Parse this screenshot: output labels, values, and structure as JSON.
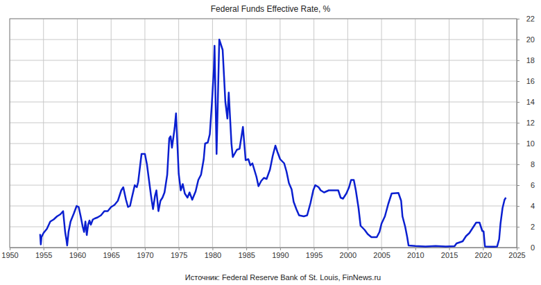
{
  "chart_data": {
    "type": "line",
    "title": "Federal Funds Effective Rate, %",
    "source": "Источник: Federal Reserve Bank of St. Louis, FinNews.ru",
    "color": "#0a1fd0",
    "xlim": [
      1950,
      2025
    ],
    "xticks": [
      1950,
      1955,
      1960,
      1965,
      1970,
      1975,
      1980,
      1985,
      1990,
      1995,
      2000,
      2005,
      2010,
      2015,
      2020,
      2025
    ],
    "ylim": [
      0,
      22
    ],
    "yticks": [
      0,
      2,
      4,
      6,
      8,
      10,
      12,
      14,
      16,
      18,
      20,
      22
    ],
    "grid": true,
    "x": [
      1954.5,
      1954.6,
      1954.7,
      1955,
      1955.5,
      1956,
      1956.5,
      1957,
      1957.5,
      1957.9,
      1958.2,
      1958.4,
      1958.5,
      1958.7,
      1959,
      1959.5,
      1959.9,
      1960.2,
      1960.5,
      1960.8,
      1961,
      1961.2,
      1961.4,
      1961.6,
      1961.8,
      1962,
      1962.3,
      1962.6,
      1963,
      1963.5,
      1964,
      1964.5,
      1965,
      1965.5,
      1966,
      1966.5,
      1966.8,
      1967.2,
      1967.5,
      1967.8,
      1968,
      1968.5,
      1968.8,
      1969,
      1969.5,
      1969.8,
      1970,
      1970.3,
      1970.6,
      1970.9,
      1971.2,
      1971.5,
      1971.7,
      1972,
      1972.3,
      1972.6,
      1972.9,
      1973.3,
      1973.6,
      1973.8,
      1974,
      1974.4,
      1974.6,
      1974.8,
      1975,
      1975.3,
      1975.6,
      1975.9,
      1976.3,
      1976.6,
      1977,
      1977.5,
      1977.9,
      1978.3,
      1978.7,
      1978.9,
      1979.3,
      1979.6,
      1979.9,
      1980.2,
      1980.3,
      1980.6,
      1981,
      1981.5,
      1981.9,
      1982.2,
      1982.4,
      1982.8,
      1983,
      1983.6,
      1984,
      1984.5,
      1984.9,
      1985.3,
      1985.6,
      1985.9,
      1986.5,
      1986.8,
      1987.2,
      1987.6,
      1988,
      1988.5,
      1988.9,
      1989.3,
      1989.6,
      1990,
      1990.6,
      1990.95,
      1991.3,
      1991.7,
      1992,
      1992.4,
      1992.8,
      1993.5,
      1994,
      1994.5,
      1994.9,
      1995.2,
      1995.7,
      1996,
      1996.5,
      1997.2,
      1998,
      1998.6,
      1998.95,
      1999.3,
      1999.8,
      2000.2,
      2000.5,
      2000.9,
      2001.2,
      2001.6,
      2001.9,
      2002.5,
      2002.95,
      2003.5,
      2004.3,
      2004.7,
      2005,
      2005.5,
      2006,
      2006.5,
      2007.5,
      2007.9,
      2008.1,
      2008.5,
      2008.8,
      2009,
      2010,
      2011.5,
      2013,
      2014.5,
      2015.8,
      2016.1,
      2017,
      2017.5,
      2018,
      2018.5,
      2019,
      2019.5,
      2019.9,
      2020.1,
      2020.3,
      2021.5,
      2022.1,
      2022.4,
      2022.6,
      2022.9,
      2023.2,
      2023.4
    ],
    "values": [
      1.3,
      0.3,
      1.0,
      1.4,
      1.8,
      2.5,
      2.7,
      3.0,
      3.2,
      3.5,
      1.5,
      0.7,
      0.2,
      1.5,
      2.5,
      3.3,
      4.0,
      3.9,
      3.0,
      2.0,
      1.5,
      2.5,
      1.2,
      2.2,
      2.6,
      2.2,
      2.7,
      2.8,
      2.9,
      3.1,
      3.5,
      3.5,
      3.9,
      4.1,
      4.5,
      5.5,
      5.8,
      4.6,
      3.9,
      4.0,
      4.6,
      6.0,
      5.8,
      6.3,
      9.0,
      9.0,
      9.0,
      8.0,
      6.5,
      5.0,
      3.7,
      5.0,
      5.5,
      3.5,
      4.5,
      4.8,
      5.3,
      7.0,
      10.5,
      10.7,
      9.6,
      11.5,
      12.9,
      10.0,
      7.1,
      5.5,
      6.1,
      5.2,
      4.8,
      5.3,
      4.6,
      5.4,
      6.5,
      7.0,
      8.5,
      10.0,
      10.1,
      10.9,
      13.8,
      17.2,
      19.4,
      9.0,
      20.0,
      19.0,
      14.0,
      12.4,
      14.9,
      10.0,
      8.7,
      9.4,
      9.5,
      11.6,
      8.4,
      8.5,
      7.9,
      8.1,
      6.8,
      5.9,
      6.4,
      6.7,
      6.6,
      7.5,
      8.8,
      9.8,
      9.2,
      8.5,
      8.1,
      7.3,
      6.2,
      5.6,
      4.4,
      3.7,
      3.1,
      3.0,
      3.1,
      4.3,
      5.5,
      6.0,
      5.8,
      5.5,
      5.3,
      5.5,
      5.5,
      5.5,
      4.8,
      4.7,
      5.2,
      5.8,
      6.5,
      6.5,
      5.5,
      3.8,
      2.1,
      1.7,
      1.3,
      1.0,
      1.0,
      1.5,
      2.3,
      3.0,
      4.2,
      5.2,
      5.25,
      4.5,
      3.0,
      2.0,
      1.0,
      0.2,
      0.15,
      0.1,
      0.15,
      0.1,
      0.13,
      0.4,
      0.6,
      1.1,
      1.4,
      1.9,
      2.4,
      2.4,
      1.6,
      1.55,
      0.1,
      0.08,
      0.1,
      0.8,
      2.3,
      3.8,
      4.6,
      4.8
    ]
  }
}
